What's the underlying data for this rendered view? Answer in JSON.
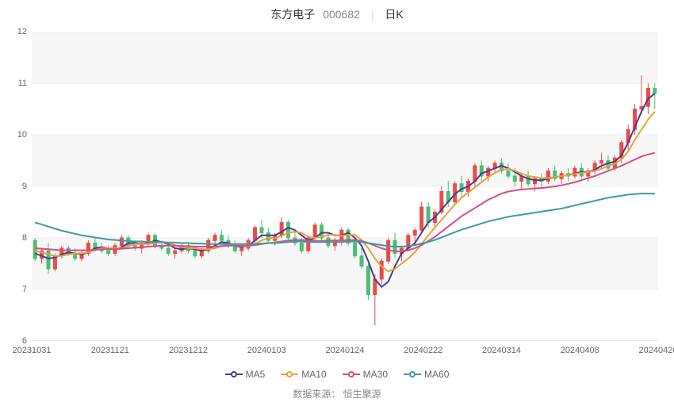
{
  "title": {
    "name": "东方电子",
    "code": "000682",
    "period": "日K"
  },
  "source_label": "数据来源：",
  "source_value": "恒生聚源",
  "chart": {
    "type": "candlestick-with-ma",
    "background_color": "#ffffff",
    "plot_alt_band_color": "#f7f7f7",
    "grid_color": "#eeeeee",
    "axis_color": "#cccccc",
    "label_fontsize": 11,
    "label_color": "#666666",
    "ylim": [
      6,
      12
    ],
    "yticks": [
      6,
      7,
      8,
      9,
      10,
      11,
      12
    ],
    "xticks": [
      "20231031",
      "20231121",
      "20231212",
      "20240103",
      "20240124",
      "20240222",
      "20240314",
      "20240408",
      "20240426"
    ],
    "up_color": "#e94b4b",
    "down_color": "#4bbf73",
    "wick_width": 1,
    "body_width": 4,
    "candles": [
      {
        "o": 7.95,
        "h": 8.0,
        "l": 7.55,
        "c": 7.6
      },
      {
        "o": 7.6,
        "h": 7.8,
        "l": 7.5,
        "c": 7.75
      },
      {
        "o": 7.75,
        "h": 7.9,
        "l": 7.3,
        "c": 7.4
      },
      {
        "o": 7.4,
        "h": 7.7,
        "l": 7.35,
        "c": 7.65
      },
      {
        "o": 7.65,
        "h": 7.85,
        "l": 7.6,
        "c": 7.8
      },
      {
        "o": 7.8,
        "h": 7.85,
        "l": 7.65,
        "c": 7.7
      },
      {
        "o": 7.7,
        "h": 7.8,
        "l": 7.55,
        "c": 7.6
      },
      {
        "o": 7.6,
        "h": 7.75,
        "l": 7.55,
        "c": 7.7
      },
      {
        "o": 7.7,
        "h": 7.95,
        "l": 7.65,
        "c": 7.9
      },
      {
        "o": 7.9,
        "h": 8.0,
        "l": 7.75,
        "c": 7.8
      },
      {
        "o": 7.8,
        "h": 7.9,
        "l": 7.7,
        "c": 7.75
      },
      {
        "o": 7.75,
        "h": 7.85,
        "l": 7.65,
        "c": 7.7
      },
      {
        "o": 7.7,
        "h": 7.9,
        "l": 7.65,
        "c": 7.85
      },
      {
        "o": 7.85,
        "h": 8.05,
        "l": 7.8,
        "c": 8.0
      },
      {
        "o": 8.0,
        "h": 8.05,
        "l": 7.8,
        "c": 7.85
      },
      {
        "o": 7.85,
        "h": 7.95,
        "l": 7.75,
        "c": 7.8
      },
      {
        "o": 7.8,
        "h": 7.95,
        "l": 7.7,
        "c": 7.9
      },
      {
        "o": 7.9,
        "h": 8.1,
        "l": 7.85,
        "c": 8.05
      },
      {
        "o": 8.05,
        "h": 8.1,
        "l": 7.8,
        "c": 7.85
      },
      {
        "o": 7.85,
        "h": 7.95,
        "l": 7.75,
        "c": 7.8
      },
      {
        "o": 7.8,
        "h": 7.85,
        "l": 7.65,
        "c": 7.7
      },
      {
        "o": 7.7,
        "h": 7.8,
        "l": 7.6,
        "c": 7.75
      },
      {
        "o": 7.75,
        "h": 7.9,
        "l": 7.7,
        "c": 7.85
      },
      {
        "o": 7.85,
        "h": 7.9,
        "l": 7.7,
        "c": 7.75
      },
      {
        "o": 7.75,
        "h": 7.8,
        "l": 7.6,
        "c": 7.65
      },
      {
        "o": 7.65,
        "h": 7.8,
        "l": 7.6,
        "c": 7.75
      },
      {
        "o": 7.75,
        "h": 8.0,
        "l": 7.7,
        "c": 7.95
      },
      {
        "o": 7.95,
        "h": 8.1,
        "l": 7.85,
        "c": 8.05
      },
      {
        "o": 8.05,
        "h": 8.15,
        "l": 7.9,
        "c": 7.95
      },
      {
        "o": 7.95,
        "h": 8.05,
        "l": 7.8,
        "c": 7.85
      },
      {
        "o": 7.85,
        "h": 7.95,
        "l": 7.7,
        "c": 7.75
      },
      {
        "o": 7.75,
        "h": 7.85,
        "l": 7.65,
        "c": 7.8
      },
      {
        "o": 7.8,
        "h": 8.0,
        "l": 7.75,
        "c": 7.95
      },
      {
        "o": 7.95,
        "h": 8.25,
        "l": 7.9,
        "c": 8.2
      },
      {
        "o": 8.2,
        "h": 8.35,
        "l": 8.0,
        "c": 8.1
      },
      {
        "o": 8.1,
        "h": 8.2,
        "l": 7.9,
        "c": 7.95
      },
      {
        "o": 7.95,
        "h": 8.1,
        "l": 7.85,
        "c": 8.05
      },
      {
        "o": 8.05,
        "h": 8.4,
        "l": 8.0,
        "c": 8.3
      },
      {
        "o": 8.3,
        "h": 8.35,
        "l": 7.95,
        "c": 8.0
      },
      {
        "o": 8.0,
        "h": 8.15,
        "l": 7.85,
        "c": 7.9
      },
      {
        "o": 7.9,
        "h": 8.0,
        "l": 7.7,
        "c": 7.75
      },
      {
        "o": 7.75,
        "h": 8.05,
        "l": 7.7,
        "c": 8.0
      },
      {
        "o": 8.0,
        "h": 8.3,
        "l": 7.95,
        "c": 8.25
      },
      {
        "o": 8.25,
        "h": 8.3,
        "l": 7.95,
        "c": 8.0
      },
      {
        "o": 8.0,
        "h": 8.1,
        "l": 7.8,
        "c": 7.85
      },
      {
        "o": 7.85,
        "h": 8.0,
        "l": 7.75,
        "c": 7.95
      },
      {
        "o": 7.95,
        "h": 8.2,
        "l": 7.85,
        "c": 8.15
      },
      {
        "o": 8.15,
        "h": 8.2,
        "l": 7.85,
        "c": 7.9
      },
      {
        "o": 7.9,
        "h": 8.0,
        "l": 7.6,
        "c": 7.65
      },
      {
        "o": 7.65,
        "h": 7.8,
        "l": 7.4,
        "c": 7.45
      },
      {
        "o": 7.45,
        "h": 7.5,
        "l": 6.8,
        "c": 6.9
      },
      {
        "o": 6.9,
        "h": 7.3,
        "l": 6.3,
        "c": 7.2
      },
      {
        "o": 7.2,
        "h": 7.6,
        "l": 7.1,
        "c": 7.55
      },
      {
        "o": 7.55,
        "h": 8.0,
        "l": 7.5,
        "c": 7.95
      },
      {
        "o": 7.95,
        "h": 8.1,
        "l": 7.6,
        "c": 7.7
      },
      {
        "o": 7.7,
        "h": 7.85,
        "l": 7.55,
        "c": 7.8
      },
      {
        "o": 7.8,
        "h": 8.1,
        "l": 7.75,
        "c": 8.05
      },
      {
        "o": 8.05,
        "h": 8.2,
        "l": 7.85,
        "c": 8.15
      },
      {
        "o": 8.15,
        "h": 8.7,
        "l": 8.1,
        "c": 8.6
      },
      {
        "o": 8.6,
        "h": 8.7,
        "l": 8.2,
        "c": 8.3
      },
      {
        "o": 8.3,
        "h": 8.55,
        "l": 8.2,
        "c": 8.5
      },
      {
        "o": 8.5,
        "h": 9.0,
        "l": 8.45,
        "c": 8.9
      },
      {
        "o": 8.9,
        "h": 9.1,
        "l": 8.6,
        "c": 8.7
      },
      {
        "o": 8.7,
        "h": 9.1,
        "l": 8.65,
        "c": 9.05
      },
      {
        "o": 9.05,
        "h": 9.2,
        "l": 8.8,
        "c": 8.9
      },
      {
        "o": 8.9,
        "h": 9.15,
        "l": 8.8,
        "c": 9.1
      },
      {
        "o": 9.1,
        "h": 9.45,
        "l": 9.0,
        "c": 9.4
      },
      {
        "o": 9.4,
        "h": 9.5,
        "l": 9.1,
        "c": 9.2
      },
      {
        "o": 9.2,
        "h": 9.4,
        "l": 9.1,
        "c": 9.35
      },
      {
        "o": 9.35,
        "h": 9.5,
        "l": 9.25,
        "c": 9.45
      },
      {
        "o": 9.45,
        "h": 9.55,
        "l": 9.25,
        "c": 9.3
      },
      {
        "o": 9.3,
        "h": 9.45,
        "l": 9.15,
        "c": 9.2
      },
      {
        "o": 9.2,
        "h": 9.35,
        "l": 9.0,
        "c": 9.1
      },
      {
        "o": 9.1,
        "h": 9.25,
        "l": 8.95,
        "c": 9.2
      },
      {
        "o": 9.2,
        "h": 9.3,
        "l": 9.0,
        "c": 9.05
      },
      {
        "o": 9.05,
        "h": 9.2,
        "l": 8.9,
        "c": 9.15
      },
      {
        "o": 9.15,
        "h": 9.25,
        "l": 9.0,
        "c": 9.1
      },
      {
        "o": 9.1,
        "h": 9.35,
        "l": 9.05,
        "c": 9.3
      },
      {
        "o": 9.3,
        "h": 9.4,
        "l": 9.1,
        "c": 9.15
      },
      {
        "o": 9.15,
        "h": 9.3,
        "l": 9.05,
        "c": 9.25
      },
      {
        "o": 9.25,
        "h": 9.35,
        "l": 9.1,
        "c": 9.2
      },
      {
        "o": 9.2,
        "h": 9.4,
        "l": 9.15,
        "c": 9.35
      },
      {
        "o": 9.35,
        "h": 9.45,
        "l": 9.15,
        "c": 9.2
      },
      {
        "o": 9.2,
        "h": 9.35,
        "l": 9.1,
        "c": 9.3
      },
      {
        "o": 9.3,
        "h": 9.5,
        "l": 9.25,
        "c": 9.45
      },
      {
        "o": 9.45,
        "h": 9.65,
        "l": 9.35,
        "c": 9.5
      },
      {
        "o": 9.5,
        "h": 9.6,
        "l": 9.3,
        "c": 9.35
      },
      {
        "o": 9.35,
        "h": 9.6,
        "l": 9.3,
        "c": 9.55
      },
      {
        "o": 9.55,
        "h": 9.9,
        "l": 9.45,
        "c": 9.85
      },
      {
        "o": 9.85,
        "h": 10.2,
        "l": 9.7,
        "c": 10.1
      },
      {
        "o": 10.1,
        "h": 10.6,
        "l": 10.0,
        "c": 10.5
      },
      {
        "o": 10.5,
        "h": 11.15,
        "l": 10.4,
        "c": 10.55
      },
      {
        "o": 10.55,
        "h": 11.0,
        "l": 10.4,
        "c": 10.9
      },
      {
        "o": 10.9,
        "h": 11.0,
        "l": 10.5,
        "c": 10.8
      }
    ],
    "ma_lines": [
      {
        "name": "MA5",
        "color": "#4b3b8f",
        "width": 2,
        "marker": "circle",
        "data": [
          7.7,
          7.65,
          7.6,
          7.62,
          7.68,
          7.72,
          7.7,
          7.68,
          7.72,
          7.8,
          7.82,
          7.8,
          7.78,
          7.82,
          7.9,
          7.9,
          7.88,
          7.9,
          7.95,
          7.92,
          7.88,
          7.8,
          7.78,
          7.8,
          7.78,
          7.75,
          7.78,
          7.85,
          7.92,
          7.9,
          7.85,
          7.82,
          7.85,
          7.95,
          8.05,
          8.05,
          8.05,
          8.12,
          8.2,
          8.15,
          8.05,
          7.95,
          8.0,
          8.1,
          8.1,
          8.05,
          8.05,
          8.1,
          8.0,
          7.85,
          7.55,
          7.2,
          7.05,
          7.15,
          7.45,
          7.7,
          7.8,
          7.9,
          8.1,
          8.3,
          8.4,
          8.55,
          8.7,
          8.85,
          8.95,
          9.0,
          9.1,
          9.25,
          9.3,
          9.35,
          9.4,
          9.35,
          9.28,
          9.2,
          9.15,
          9.12,
          9.12,
          9.15,
          9.18,
          9.2,
          9.22,
          9.25,
          9.28,
          9.28,
          9.32,
          9.4,
          9.45,
          9.48,
          9.6,
          9.85,
          10.15,
          10.45,
          10.7,
          10.8
        ]
      },
      {
        "name": "MA10",
        "color": "#e8a23a",
        "width": 2,
        "marker": "circle",
        "data": [
          7.75,
          7.72,
          7.68,
          7.65,
          7.65,
          7.68,
          7.7,
          7.7,
          7.72,
          7.76,
          7.8,
          7.8,
          7.8,
          7.8,
          7.84,
          7.88,
          7.88,
          7.88,
          7.9,
          7.92,
          7.9,
          7.86,
          7.82,
          7.8,
          7.8,
          7.78,
          7.78,
          7.8,
          7.84,
          7.86,
          7.86,
          7.84,
          7.84,
          7.88,
          7.95,
          8.0,
          8.0,
          8.04,
          8.1,
          8.12,
          8.1,
          8.02,
          8.0,
          8.02,
          8.06,
          8.06,
          8.04,
          8.06,
          8.06,
          7.96,
          7.8,
          7.6,
          7.45,
          7.35,
          7.4,
          7.5,
          7.6,
          7.72,
          7.88,
          8.05,
          8.2,
          8.35,
          8.5,
          8.65,
          8.78,
          8.88,
          8.98,
          9.08,
          9.18,
          9.26,
          9.32,
          9.34,
          9.3,
          9.25,
          9.2,
          9.18,
          9.16,
          9.16,
          9.18,
          9.2,
          9.22,
          9.24,
          9.26,
          9.28,
          9.3,
          9.34,
          9.4,
          9.44,
          9.52,
          9.68,
          9.9,
          10.1,
          10.3,
          10.45
        ]
      },
      {
        "name": "MA30",
        "color": "#d94b87",
        "width": 2,
        "marker": "circle",
        "data": [
          7.8,
          7.79,
          7.78,
          7.77,
          7.76,
          7.76,
          7.76,
          7.76,
          7.76,
          7.77,
          7.78,
          7.78,
          7.78,
          7.79,
          7.8,
          7.81,
          7.82,
          7.83,
          7.84,
          7.85,
          7.85,
          7.85,
          7.84,
          7.84,
          7.83,
          7.83,
          7.83,
          7.83,
          7.84,
          7.85,
          7.85,
          7.85,
          7.85,
          7.86,
          7.88,
          7.9,
          7.91,
          7.93,
          7.95,
          7.96,
          7.96,
          7.95,
          7.94,
          7.94,
          7.95,
          7.95,
          7.95,
          7.96,
          7.96,
          7.94,
          7.9,
          7.85,
          7.8,
          7.76,
          7.74,
          7.74,
          7.76,
          7.8,
          7.86,
          7.94,
          8.02,
          8.12,
          8.22,
          8.32,
          8.42,
          8.5,
          8.58,
          8.66,
          8.74,
          8.8,
          8.86,
          8.9,
          8.92,
          8.94,
          8.95,
          8.96,
          8.97,
          8.98,
          9.0,
          9.02,
          9.05,
          9.08,
          9.12,
          9.16,
          9.2,
          9.25,
          9.3,
          9.35,
          9.4,
          9.46,
          9.52,
          9.58,
          9.62,
          9.65
        ]
      },
      {
        "name": "MA60",
        "color": "#3a9e9e",
        "width": 2,
        "marker": "circle",
        "data": [
          8.3,
          8.26,
          8.22,
          8.18,
          8.14,
          8.11,
          8.08,
          8.05,
          8.03,
          8.01,
          7.99,
          7.97,
          7.96,
          7.95,
          7.94,
          7.93,
          7.93,
          7.92,
          7.92,
          7.92,
          7.91,
          7.91,
          7.9,
          7.9,
          7.89,
          7.89,
          7.88,
          7.88,
          7.88,
          7.88,
          7.88,
          7.88,
          7.88,
          7.88,
          7.89,
          7.9,
          7.9,
          7.91,
          7.92,
          7.93,
          7.93,
          7.92,
          7.92,
          7.92,
          7.92,
          7.92,
          7.92,
          7.93,
          7.93,
          7.92,
          7.9,
          7.88,
          7.86,
          7.84,
          7.83,
          7.83,
          7.84,
          7.86,
          7.89,
          7.92,
          7.96,
          8.01,
          8.06,
          8.11,
          8.16,
          8.2,
          8.24,
          8.28,
          8.32,
          8.35,
          8.38,
          8.41,
          8.43,
          8.45,
          8.47,
          8.49,
          8.51,
          8.53,
          8.55,
          8.57,
          8.6,
          8.63,
          8.66,
          8.69,
          8.72,
          8.75,
          8.78,
          8.8,
          8.82,
          8.84,
          8.85,
          8.86,
          8.86,
          8.86
        ]
      }
    ]
  },
  "legend": [
    {
      "label": "MA5",
      "color": "#4b3b8f"
    },
    {
      "label": "MA10",
      "color": "#e8a23a"
    },
    {
      "label": "MA30",
      "color": "#d94b87"
    },
    {
      "label": "MA60",
      "color": "#3a9e9e"
    }
  ]
}
